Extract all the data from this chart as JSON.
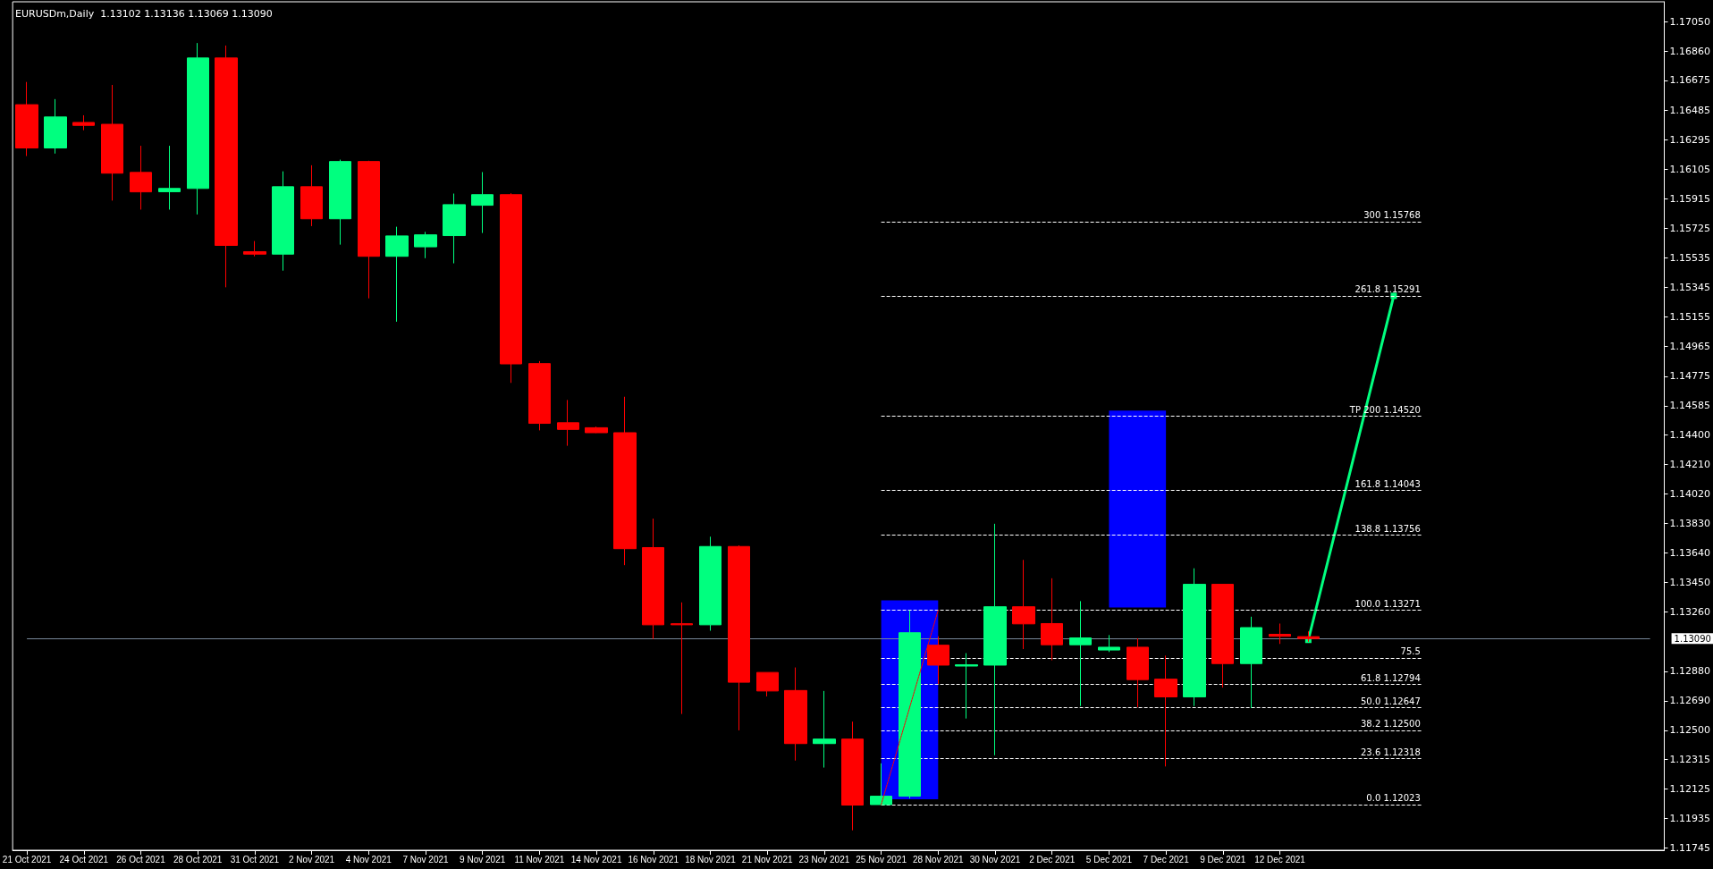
{
  "chart_data": {
    "type": "candlestick",
    "title": "EURUSDm,Daily  1.13102 1.13136 1.13069 1.13090",
    "categories": [
      "21 Oct 2021",
      null,
      "24 Oct 2021",
      null,
      "26 Oct 2021",
      null,
      "28 Oct 2021",
      null,
      "31 Oct 2021",
      null,
      "2 Nov 2021",
      null,
      "4 Nov 2021",
      null,
      "7 Nov 2021",
      null,
      "9 Nov 2021",
      null,
      "11 Nov 2021",
      null,
      "14 Nov 2021",
      null,
      "16 Nov 2021",
      null,
      "18 Nov 2021",
      null,
      "21 Nov 2021",
      null,
      "23 Nov 2021",
      null,
      "25 Nov 2021",
      null,
      "28 Nov 2021",
      null,
      "30 Nov 2021",
      null,
      "2 Dec 2021",
      null,
      "5 Dec 2021",
      null,
      "7 Dec 2021",
      null,
      "9 Dec 2021",
      null,
      "12 Dec 2021",
      null,
      null,
      null,
      null,
      null,
      null,
      null,
      null,
      null,
      null,
      null,
      null,
      null
    ],
    "ohlc": [
      [
        1.16519,
        1.16665,
        1.16189,
        1.16241
      ],
      [
        1.16241,
        1.16555,
        1.16205,
        1.1644
      ],
      [
        1.16405,
        1.16451,
        1.16355,
        1.16386
      ],
      [
        1.16393,
        1.16646,
        1.15903,
        1.16079
      ],
      [
        1.16084,
        1.16255,
        1.15845,
        1.15959
      ],
      [
        1.1596,
        1.16255,
        1.15845,
        1.15981
      ],
      [
        1.15981,
        1.16915,
        1.15814,
        1.16819
      ],
      [
        1.16819,
        1.16899,
        1.15346,
        1.15615
      ],
      [
        1.15575,
        1.15643,
        1.15545,
        1.15559
      ],
      [
        1.15559,
        1.16091,
        1.15453,
        1.15992
      ],
      [
        1.15992,
        1.1613,
        1.15739,
        1.15786
      ],
      [
        1.15786,
        1.16166,
        1.1562,
        1.16154
      ],
      [
        1.16154,
        1.16159,
        1.15275,
        1.15545
      ],
      [
        1.15545,
        1.15735,
        1.15125,
        1.15676
      ],
      [
        1.15606,
        1.15702,
        1.15533,
        1.15683
      ],
      [
        1.15678,
        1.15948,
        1.155,
        1.15877
      ],
      [
        1.15873,
        1.16086,
        1.15695,
        1.15941
      ],
      [
        1.15941,
        1.1595,
        1.14732,
        1.14854
      ],
      [
        1.14856,
        1.14872,
        1.14427,
        1.14472
      ],
      [
        1.14476,
        1.14622,
        1.14328,
        1.14433
      ],
      [
        1.14444,
        1.14451,
        1.1441,
        1.14412
      ],
      [
        1.14412,
        1.14643,
        1.13561,
        1.13667
      ],
      [
        1.13674,
        1.1386,
        1.13087,
        1.13178
      ],
      [
        1.13185,
        1.13322,
        1.12605,
        1.13178
      ],
      [
        1.13178,
        1.13744,
        1.1314,
        1.13681
      ],
      [
        1.13681,
        1.13688,
        1.125,
        1.12809
      ],
      [
        1.12872,
        1.12872,
        1.12718,
        1.12753
      ],
      [
        1.12756,
        1.12904,
        1.12306,
        1.12415
      ],
      [
        1.12415,
        1.12753,
        1.12261,
        1.12444
      ],
      [
        1.12444,
        1.12556,
        1.11858,
        1.1202
      ],
      [
        1.12023,
        1.12288,
        1.12023,
        1.12077
      ],
      [
        1.12077,
        1.13271,
        1.12062,
        1.13127
      ],
      [
        1.13047,
        1.13104,
        1.12798,
        1.12919
      ],
      [
        1.12913,
        1.12996,
        1.12576,
        1.12921
      ],
      [
        1.12919,
        1.13827,
        1.1234,
        1.13294
      ],
      [
        1.13294,
        1.13595,
        1.13022,
        1.13184
      ],
      [
        1.13186,
        1.13477,
        1.1295,
        1.1305
      ],
      [
        1.1305,
        1.1333,
        1.12656,
        1.13094
      ],
      [
        1.13016,
        1.13112,
        1.13003,
        1.13034
      ],
      [
        1.13034,
        1.13091,
        1.12648,
        1.12826
      ],
      [
        1.12829,
        1.1298,
        1.12268,
        1.12715
      ],
      [
        1.12715,
        1.13541,
        1.12656,
        1.13438
      ],
      [
        1.13438,
        1.13438,
        1.12775,
        1.12929
      ],
      [
        1.12929,
        1.1323,
        1.12643,
        1.1316
      ],
      [
        1.13117,
        1.13186,
        1.13055,
        1.13104
      ],
      [
        1.13102,
        1.13136,
        1.13069,
        1.1309
      ],
      null,
      null,
      null,
      null,
      null,
      null,
      null,
      null,
      null,
      null,
      null,
      null
    ],
    "colors": [
      "#ff0000",
      "#00ff7f",
      "#ff0000",
      "#ff0000",
      "#ff0000",
      "#00ff7f",
      "#00ff7f",
      "#ff0000",
      "#ff0000",
      "#00ff7f",
      "#ff0000",
      "#00ff7f",
      "#ff0000",
      "#00ff7f",
      "#00ff7f",
      "#00ff7f",
      "#00ff7f",
      "#ff0000",
      "#ff0000",
      "#ff0000",
      "#ff0000",
      "#ff0000",
      "#ff0000",
      "#ff0000",
      "#00ff7f",
      "#ff0000",
      "#ff0000",
      "#ff0000",
      "#00ff7f",
      "#ff0000",
      "#00ff7f",
      "#00ff7f",
      "#ff0000",
      "#00ff7f",
      "#00ff7f",
      "#ff0000",
      "#ff0000",
      "#00ff7f",
      "#00ff7f",
      "#ff0000",
      "#ff0000",
      "#00ff7f",
      "#ff0000",
      "#00ff7f",
      "#ff0000",
      "#ff0000",
      null,
      null,
      null,
      null,
      null,
      null,
      null,
      null,
      null,
      null,
      null,
      null
    ],
    "series": [
      {
        "type": "bar",
        "color": "#0000ff",
        "values": [
          null,
          null,
          null,
          null,
          null,
          null,
          null,
          null,
          null,
          null,
          null,
          null,
          null,
          null,
          null,
          null,
          null,
          null,
          null,
          null,
          null,
          null,
          null,
          null,
          null,
          null,
          null,
          null,
          null,
          null,
          null,
          0.01278,
          null,
          null,
          null,
          null,
          null,
          null,
          null,
          0.01265,
          null,
          null,
          null,
          null,
          null,
          null,
          null,
          null,
          null,
          null,
          null,
          null,
          null,
          null,
          null,
          null,
          null,
          null
        ],
        "base": [
          null,
          null,
          null,
          null,
          null,
          null,
          null,
          null,
          null,
          null,
          null,
          null,
          null,
          null,
          null,
          null,
          null,
          null,
          null,
          null,
          null,
          null,
          null,
          null,
          null,
          null,
          null,
          null,
          null,
          null,
          null,
          1.12057,
          null,
          null,
          null,
          null,
          null,
          null,
          null,
          1.13289,
          null,
          null,
          null,
          null,
          null,
          null,
          null,
          null,
          null,
          null,
          null,
          null,
          null,
          null,
          null,
          null,
          null,
          null
        ]
      },
      {
        "type": "line",
        "color": "#00ff7f",
        "marker": "square",
        "line_style": "solid",
        "values": [
          null,
          null,
          null,
          null,
          null,
          null,
          null,
          null,
          null,
          null,
          null,
          null,
          null,
          null,
          null,
          null,
          null,
          null,
          null,
          null,
          null,
          null,
          null,
          null,
          null,
          null,
          null,
          null,
          null,
          null,
          null,
          null,
          null,
          null,
          null,
          null,
          null,
          null,
          null,
          null,
          null,
          null,
          null,
          null,
          null,
          1.13081,
          null,
          null,
          1.15291,
          null,
          null,
          null,
          null,
          null,
          null,
          null,
          null,
          null
        ]
      },
      {
        "type": "line",
        "color": "#ff0000",
        "marker": "none",
        "line_style": "dotted",
        "values": [
          null,
          null,
          null,
          null,
          null,
          null,
          null,
          null,
          null,
          null,
          null,
          null,
          null,
          null,
          null,
          null,
          null,
          null,
          null,
          null,
          null,
          null,
          null,
          null,
          null,
          null,
          null,
          null,
          null,
          null,
          1.12023,
          null,
          1.13271,
          null,
          null,
          null,
          null,
          null,
          null,
          null,
          null,
          null,
          null,
          null,
          null,
          null,
          null,
          null,
          null,
          null,
          null,
          null,
          null,
          null,
          null,
          null,
          null,
          null
        ]
      }
    ],
    "ylim": [
      1.1173,
      1.1718
    ],
    "yticks": [
      {
        "value": 1.1705,
        "label": "1.17050"
      },
      {
        "value": 1.1686,
        "label": "1.16860"
      },
      {
        "value": 1.16675,
        "label": "1.16675"
      },
      {
        "value": 1.16485,
        "label": "1.16485"
      },
      {
        "value": 1.16295,
        "label": "1.16295"
      },
      {
        "value": 1.16105,
        "label": "1.16105"
      },
      {
        "value": 1.15915,
        "label": "1.15915"
      },
      {
        "value": 1.15725,
        "label": "1.15725"
      },
      {
        "value": 1.15535,
        "label": "1.15535"
      },
      {
        "value": 1.15345,
        "label": "1.15345"
      },
      {
        "value": 1.15155,
        "label": "1.15155"
      },
      {
        "value": 1.14965,
        "label": "1.14965"
      },
      {
        "value": 1.14775,
        "label": "1.14775"
      },
      {
        "value": 1.14585,
        "label": "1.14585"
      },
      {
        "value": 1.144,
        "label": "1.14400"
      },
      {
        "value": 1.1421,
        "label": "1.14210"
      },
      {
        "value": 1.1402,
        "label": "1.14020"
      },
      {
        "value": 1.1383,
        "label": "1.13830"
      },
      {
        "value": 1.1364,
        "label": "1.13640"
      },
      {
        "value": 1.1345,
        "label": "1.13450"
      },
      {
        "value": 1.1326,
        "label": "1.13260"
      },
      {
        "value": 1.1288,
        "label": "1.12880"
      },
      {
        "value": 1.1269,
        "label": "1.12690"
      },
      {
        "value": 1.125,
        "label": "1.12500"
      },
      {
        "value": 1.12315,
        "label": "1.12315"
      },
      {
        "value": 1.12125,
        "label": "1.12125"
      },
      {
        "value": 1.11935,
        "label": "1.11935"
      },
      {
        "value": 1.11745,
        "label": "1.11745"
      }
    ],
    "ref_lines": [
      {
        "axis": "y",
        "value": 1.15768,
        "label": "300 1.15768",
        "color": "#ffffff",
        "line_style": "dashed"
      },
      {
        "axis": "y",
        "value": 1.15291,
        "label": "261.8 1.15291",
        "color": "#ffffff",
        "line_style": "dashed"
      },
      {
        "axis": "y",
        "value": 1.1452,
        "label": "TP 200 1.14520",
        "color": "#ffffff",
        "line_style": "dashed"
      },
      {
        "axis": "y",
        "value": 1.14043,
        "label": "161.8 1.14043",
        "color": "#ffffff",
        "line_style": "dashed"
      },
      {
        "axis": "y",
        "value": 1.13756,
        "label": "138.8 1.13756",
        "color": "#ffffff",
        "line_style": "dashed"
      },
      {
        "axis": "y",
        "value": 1.13271,
        "label": "100.0 1.13271",
        "color": "#ffffff",
        "line_style": "dashed"
      },
      {
        "axis": "y",
        "value": 1.12965,
        "label": null,
        "color": "#ffffff",
        "line_style": "dashed"
      },
      {
        "axis": "y",
        "value": 1.12794,
        "label": "61.8 1.12794",
        "color": "#ffffff",
        "line_style": "dashed"
      },
      {
        "axis": "y",
        "value": 1.12647,
        "label": "50.0 1.12647",
        "color": "#ffffff",
        "line_style": "dashed"
      },
      {
        "axis": "y",
        "value": 1.125,
        "label": "38.2 1.12500",
        "color": "#ffffff",
        "line_style": "dashed"
      },
      {
        "axis": "y",
        "value": 1.12318,
        "label": "23.6 1.12318",
        "color": "#ffffff",
        "line_style": "dashed"
      },
      {
        "axis": "y",
        "value": 1.12023,
        "label": "0.0 1.12023",
        "color": "#ffffff",
        "line_style": "dashed"
      },
      {
        "axis": "y",
        "value": 1.1309,
        "label": "1.13090",
        "color": "#778899",
        "line_style": "solid"
      }
    ],
    "annotations": [
      {
        "text": "75.5",
        "y": 1.12965
      }
    ],
    "grid": false
  }
}
